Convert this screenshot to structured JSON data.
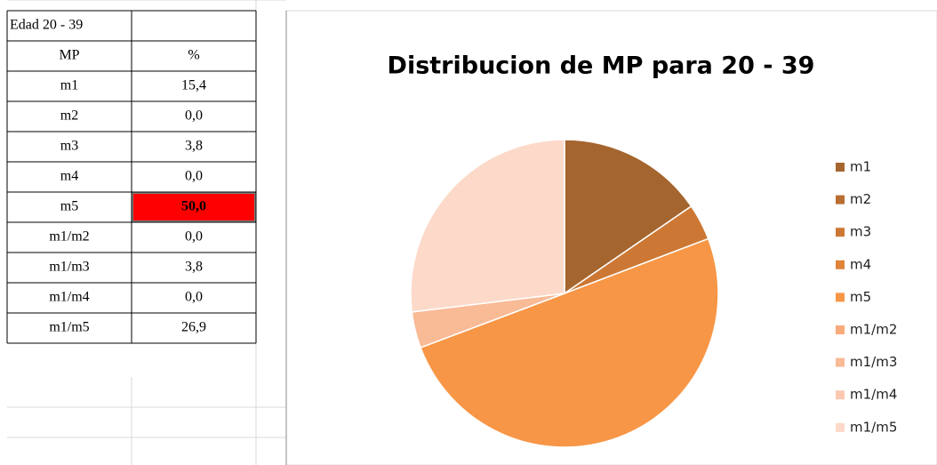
{
  "table": {
    "caption": "Edad  20 - 39",
    "columns": [
      "MP",
      "%"
    ],
    "rows": [
      [
        "m1",
        "15,4"
      ],
      [
        "m2",
        "0,0"
      ],
      [
        "m3",
        "3,8"
      ],
      [
        "m4",
        "0,0"
      ],
      [
        "m5",
        "50,0"
      ],
      [
        "m1/m2",
        "0,0"
      ],
      [
        "m1/m3",
        "3,8"
      ],
      [
        "m1/m4",
        "0,0"
      ],
      [
        "m1/m5",
        "26,9"
      ]
    ]
  },
  "chart_data": {
    "type": "pie",
    "title": "Distribucion de MP para 20 - 39",
    "categories": [
      "m1",
      "m2",
      "m3",
      "m4",
      "m5",
      "m1/m2",
      "m1/m3",
      "m1/m4",
      "m1/m5"
    ],
    "values": [
      15.4,
      0,
      3.8,
      0,
      50,
      0,
      3.8,
      0,
      26.9
    ],
    "colors": [
      "#a5652e",
      "#b96e31",
      "#cc7834",
      "#e08439",
      "#f79646",
      "#f8aa7a",
      "#f9ba96",
      "#fac8b0",
      "#fcd9c9"
    ],
    "legend": "right"
  }
}
